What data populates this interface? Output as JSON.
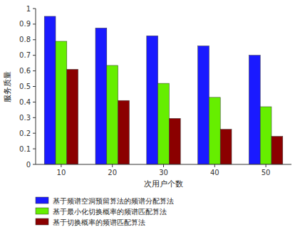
{
  "chart_data": {
    "type": "bar",
    "categories": [
      "10",
      "20",
      "30",
      "40",
      "50"
    ],
    "series": [
      {
        "name": "基于频谱空洞预留算法的频谱分配算法",
        "color": "#1A1AFF",
        "values": [
          0.95,
          0.875,
          0.825,
          0.76,
          0.7
        ]
      },
      {
        "name": "基于最小化切换概率的频谱匹配算法",
        "color": "#66EE00",
        "values": [
          0.79,
          0.635,
          0.52,
          0.43,
          0.37
        ]
      },
      {
        "name": "基于切换概率的频谱匹配算法",
        "color": "#8B0000",
        "values": [
          0.61,
          0.41,
          0.295,
          0.225,
          0.18
        ]
      }
    ],
    "xlabel": "次用户个数",
    "ylabel": "服务质量",
    "ylim": [
      0,
      1.0
    ],
    "yticks": [
      0,
      0.1,
      0.2,
      0.3,
      0.4,
      0.5,
      0.6,
      0.7,
      0.8,
      0.9,
      1
    ],
    "grid": false,
    "legend": "bottom"
  }
}
